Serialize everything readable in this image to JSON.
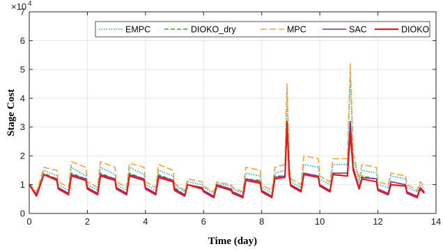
{
  "chart_data": {
    "type": "line",
    "xlabel": "Time (day)",
    "ylabel": "Stage Cost",
    "exponent": {
      "base": "×10",
      "power": "4"
    },
    "xlim": [
      0,
      14
    ],
    "ylim": [
      0,
      7
    ],
    "y_scale_factor": 10000,
    "xticks": [
      0,
      2,
      4,
      6,
      8,
      10,
      12,
      14
    ],
    "yticks": [
      0,
      1,
      2,
      3,
      4,
      5,
      6,
      7
    ],
    "grid": true,
    "legend_position": "top-right, single row",
    "series": [
      {
        "name": "EMPC",
        "color": "#1f9fe0",
        "dash": "dotted",
        "x": [
          0,
          0.25,
          0.5,
          0.95,
          1.0,
          1.35,
          1.45,
          1.95,
          2.0,
          2.35,
          2.45,
          2.95,
          3.0,
          3.35,
          3.45,
          3.95,
          4.0,
          4.35,
          4.45,
          4.95,
          5.0,
          5.35,
          5.45,
          5.95,
          6.0,
          6.35,
          6.45,
          6.95,
          7.0,
          7.35,
          7.45,
          7.95,
          8.0,
          8.35,
          8.45,
          8.8,
          8.87,
          8.95,
          9.0,
          9.35,
          9.45,
          9.95,
          10.0,
          10.35,
          10.45,
          10.95,
          11.05,
          11.15,
          11.35,
          11.45,
          11.95,
          12.0,
          12.35,
          12.45,
          12.95,
          13.0,
          13.35,
          13.45,
          13.6
        ],
        "y": [
          1.0,
          0.7,
          1.5,
          1.3,
          1.0,
          0.8,
          1.6,
          1.3,
          1.0,
          0.8,
          1.6,
          1.35,
          1.0,
          0.8,
          1.6,
          1.35,
          1.0,
          0.8,
          1.5,
          1.3,
          1.0,
          0.75,
          1.1,
          1.0,
          0.9,
          0.7,
          1.05,
          0.95,
          0.85,
          0.7,
          1.4,
          1.3,
          0.9,
          0.7,
          1.4,
          1.5,
          4.3,
          1.6,
          1.1,
          0.9,
          1.7,
          1.6,
          1.2,
          1.0,
          1.7,
          1.7,
          4.8,
          1.9,
          1.1,
          1.5,
          1.4,
          1.0,
          0.9,
          1.3,
          1.2,
          0.9,
          0.75,
          1.0,
          0.85
        ]
      },
      {
        "name": "DIOKO_dry",
        "color": "#3aa31c",
        "dash": "dashed",
        "x": [
          0,
          0.25,
          0.5,
          0.95,
          1.0,
          1.35,
          1.45,
          1.95,
          2.0,
          2.35,
          2.45,
          2.95,
          3.0,
          3.35,
          3.45,
          3.95,
          4.0,
          4.35,
          4.45,
          4.95,
          5.0,
          5.35,
          5.45,
          5.95,
          6.0,
          6.35,
          6.45,
          6.95,
          7.0,
          7.35,
          7.45,
          7.95,
          8.0,
          8.35,
          8.45,
          8.8,
          8.87,
          8.95,
          9.0,
          9.35,
          9.45,
          9.95,
          10.0,
          10.35,
          10.45,
          10.95,
          11.05,
          11.15,
          11.35,
          11.45,
          11.95,
          12.0,
          12.35,
          12.45,
          12.95,
          13.0,
          13.35,
          13.45,
          13.6
        ],
        "y": [
          1.0,
          0.65,
          1.4,
          1.2,
          0.9,
          0.7,
          1.4,
          1.2,
          0.9,
          0.7,
          1.4,
          1.2,
          0.9,
          0.7,
          1.4,
          1.2,
          0.9,
          0.7,
          1.35,
          1.15,
          0.9,
          0.65,
          1.0,
          0.9,
          0.8,
          0.6,
          0.95,
          0.85,
          0.75,
          0.6,
          1.2,
          1.15,
          0.8,
          0.6,
          1.3,
          1.3,
          3.2,
          1.4,
          1.0,
          0.8,
          1.4,
          1.3,
          1.0,
          0.8,
          1.4,
          1.4,
          3.1,
          1.6,
          0.9,
          1.3,
          1.2,
          0.85,
          0.7,
          1.1,
          1.0,
          0.75,
          0.6,
          0.9,
          0.75
        ]
      },
      {
        "name": "MPC",
        "color": "#f0a43a",
        "dash": "long-dashed",
        "x": [
          0,
          0.25,
          0.5,
          0.95,
          1.0,
          1.35,
          1.45,
          1.95,
          2.0,
          2.35,
          2.45,
          2.95,
          3.0,
          3.35,
          3.45,
          3.95,
          4.0,
          4.35,
          4.45,
          4.95,
          5.0,
          5.35,
          5.45,
          5.95,
          6.0,
          6.35,
          6.45,
          6.95,
          7.0,
          7.35,
          7.45,
          7.95,
          8.0,
          8.35,
          8.45,
          8.8,
          8.87,
          8.95,
          9.0,
          9.35,
          9.45,
          9.95,
          10.0,
          10.35,
          10.45,
          10.95,
          11.05,
          11.15,
          11.35,
          11.45,
          11.95,
          12.0,
          12.35,
          12.45,
          12.95,
          13.0,
          13.35,
          13.45,
          13.6
        ],
        "y": [
          1.05,
          0.75,
          1.6,
          1.5,
          1.1,
          0.9,
          1.8,
          1.6,
          1.1,
          0.9,
          1.8,
          1.6,
          1.1,
          0.9,
          1.75,
          1.6,
          1.1,
          0.9,
          1.7,
          1.5,
          1.05,
          0.8,
          1.2,
          1.1,
          0.95,
          0.75,
          1.1,
          1.0,
          0.9,
          0.75,
          1.6,
          1.5,
          1.0,
          0.8,
          1.6,
          1.7,
          4.5,
          1.8,
          1.2,
          1.0,
          2.0,
          1.9,
          1.3,
          1.1,
          1.9,
          1.9,
          5.2,
          2.1,
          1.2,
          1.7,
          1.6,
          1.1,
          1.0,
          1.4,
          1.3,
          1.0,
          0.8,
          1.1,
          0.95
        ]
      },
      {
        "name": "SAC",
        "color": "#7a2d90",
        "dash": "solid",
        "x": [
          0,
          0.25,
          0.5,
          0.95,
          1.0,
          1.35,
          1.45,
          1.95,
          2.0,
          2.35,
          2.45,
          2.95,
          3.0,
          3.35,
          3.45,
          3.95,
          4.0,
          4.35,
          4.45,
          4.95,
          5.0,
          5.35,
          5.45,
          5.95,
          6.0,
          6.35,
          6.45,
          6.95,
          7.0,
          7.35,
          7.45,
          7.95,
          8.0,
          8.35,
          8.45,
          8.8,
          8.87,
          8.95,
          9.0,
          9.35,
          9.45,
          9.95,
          10.0,
          10.35,
          10.45,
          10.95,
          11.05,
          11.15,
          11.35,
          11.45,
          11.95,
          12.0,
          12.35,
          12.45,
          12.95,
          13.0,
          13.35,
          13.45,
          13.6
        ],
        "y": [
          1.0,
          0.65,
          1.35,
          1.2,
          0.9,
          0.7,
          1.35,
          1.2,
          0.9,
          0.7,
          1.35,
          1.2,
          0.9,
          0.7,
          1.35,
          1.2,
          0.9,
          0.7,
          1.3,
          1.15,
          0.85,
          0.65,
          1.0,
          0.9,
          0.8,
          0.6,
          1.0,
          0.85,
          0.75,
          0.6,
          1.2,
          1.1,
          0.8,
          0.6,
          1.25,
          1.3,
          3.2,
          1.4,
          1.0,
          0.8,
          1.4,
          1.3,
          1.0,
          0.8,
          1.4,
          1.4,
          3.2,
          1.6,
          0.9,
          1.25,
          1.2,
          0.85,
          0.7,
          1.1,
          1.0,
          0.75,
          0.6,
          0.9,
          0.75
        ]
      },
      {
        "name": "DIOKO",
        "color": "#e31a1a",
        "dash": "solid",
        "x": [
          0,
          0.25,
          0.5,
          0.95,
          1.0,
          1.35,
          1.45,
          1.95,
          2.0,
          2.35,
          2.45,
          2.95,
          3.0,
          3.35,
          3.45,
          3.95,
          4.0,
          4.35,
          4.45,
          4.95,
          5.0,
          5.35,
          5.45,
          5.95,
          6.0,
          6.35,
          6.45,
          6.95,
          7.0,
          7.35,
          7.45,
          7.95,
          8.0,
          8.35,
          8.45,
          8.8,
          8.87,
          8.95,
          9.0,
          9.35,
          9.45,
          9.95,
          10.0,
          10.35,
          10.45,
          10.95,
          11.05,
          11.15,
          11.35,
          11.45,
          11.95,
          12.0,
          12.35,
          12.45,
          12.95,
          13.0,
          13.35,
          13.45,
          13.6
        ],
        "y": [
          1.0,
          0.6,
          1.35,
          1.15,
          0.85,
          0.65,
          1.3,
          1.15,
          0.85,
          0.65,
          1.3,
          1.15,
          0.85,
          0.65,
          1.3,
          1.15,
          0.85,
          0.65,
          1.25,
          1.1,
          0.8,
          0.6,
          1.0,
          0.85,
          0.75,
          0.55,
          0.95,
          0.8,
          0.7,
          0.55,
          1.15,
          1.05,
          0.75,
          0.55,
          1.2,
          1.25,
          3.1,
          1.3,
          0.95,
          0.75,
          1.35,
          1.25,
          0.95,
          0.75,
          1.35,
          1.3,
          2.8,
          1.5,
          0.85,
          1.2,
          1.1,
          0.8,
          0.65,
          1.0,
          0.95,
          0.7,
          0.55,
          0.85,
          0.7
        ]
      }
    ]
  }
}
